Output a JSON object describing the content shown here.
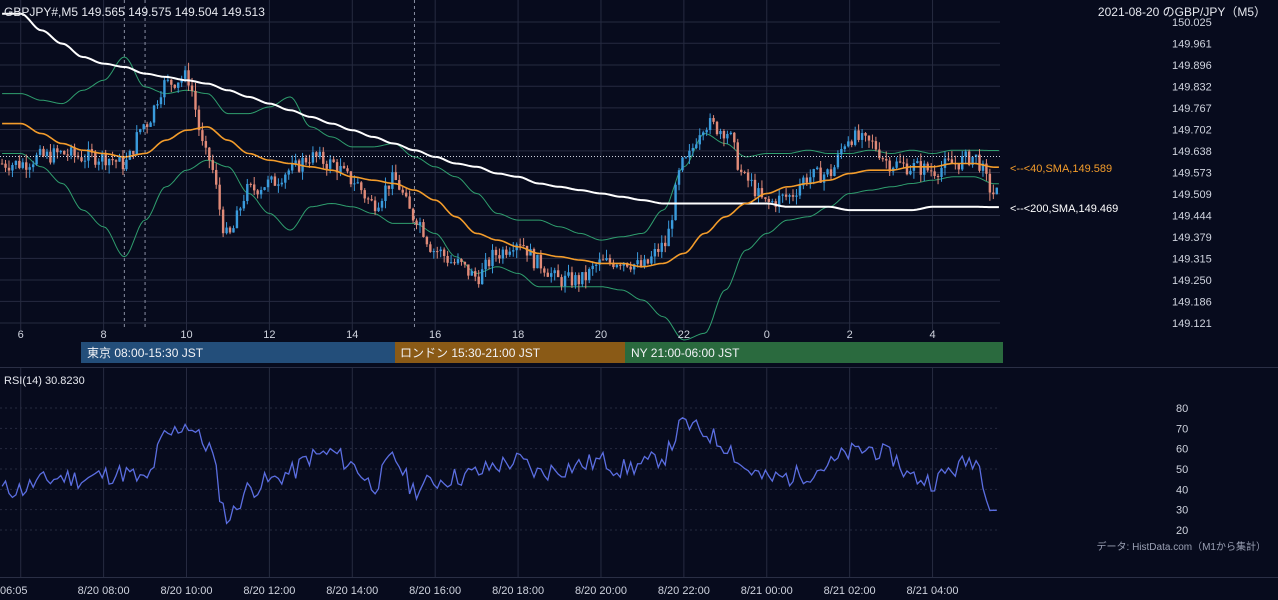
{
  "header": {
    "symbol_line": "GBPJPY#,M5 149.565 149.575 149.504 149.513",
    "title_right": "2021-08-20 のGBP/JPY（M5）"
  },
  "colors": {
    "background": "#070b1d",
    "grid": "#262b40",
    "bull": "#3a9bdc",
    "bear": "#e08a78",
    "sma40": "#f39c2b",
    "sma200": "#ffffff",
    "bollinger": "#2f9e6e",
    "rsi": "#5b6ee1",
    "tokyo": "#234e7a",
    "london": "#8a5a16",
    "ny": "#2a6a3e"
  },
  "main_panel": {
    "y_ticks": [
      "150.025",
      "149.961",
      "149.896",
      "149.832",
      "149.767",
      "149.702",
      "149.638",
      "149.573",
      "149.509",
      "149.444",
      "149.379",
      "149.315",
      "149.250",
      "149.186",
      "149.121"
    ],
    "x_ticks": [
      "6",
      "8",
      "10",
      "12",
      "14",
      "16",
      "18",
      "20",
      "22",
      "0",
      "2",
      "4"
    ],
    "sma40_label": "<--<40,SMA,149.589",
    "sma200_label": "<--<200,SMA,149.469",
    "sessions": [
      {
        "label": "東京 08:00-15:30 JST",
        "color": "#234e7a"
      },
      {
        "label": "ロンドン 15:30-21:00 JST",
        "color": "#8a5a16"
      },
      {
        "label": "NY 21:00-06:00 JST",
        "color": "#2a6a3e"
      }
    ]
  },
  "rsi_panel": {
    "label": "RSI(14) 30.8230",
    "y_ticks": [
      "80",
      "70",
      "60",
      "50",
      "40",
      "30",
      "20"
    ],
    "source_note": "データ: HistData.com（M1から集計）",
    "time_ticks": [
      "06:05",
      "8/20 08:00",
      "8/20 10:00",
      "8/20 12:00",
      "8/20 14:00",
      "8/20 16:00",
      "8/20 18:00",
      "8/20 20:00",
      "8/20 22:00",
      "8/21 00:00",
      "8/21 02:00",
      "8/21 04:00"
    ]
  },
  "chart_data": [
    {
      "type": "line",
      "title": "GBPJPY#,M5",
      "x_hours": [
        6,
        6.5,
        7,
        7.5,
        8,
        8.5,
        9,
        9.5,
        10,
        10.5,
        11,
        11.5,
        12,
        12.5,
        13,
        13.5,
        14,
        14.5,
        15,
        15.5,
        16,
        16.5,
        17,
        17.5,
        18,
        18.5,
        19,
        19.5,
        20,
        20.5,
        21,
        21.5,
        22,
        22.5,
        23,
        23.5,
        24,
        24.5,
        25,
        25.5,
        26,
        26.5,
        27,
        27.5,
        28,
        28.5,
        29,
        29.5
      ],
      "x_tick_labels": [
        "6",
        "8",
        "10",
        "12",
        "14",
        "16",
        "18",
        "20",
        "22",
        "0",
        "2",
        "4"
      ],
      "ylim": [
        149.121,
        150.025
      ],
      "series": [
        {
          "name": "Close",
          "values": [
            149.6,
            149.62,
            149.63,
            149.62,
            149.62,
            149.6,
            149.72,
            149.84,
            149.86,
            149.62,
            149.38,
            149.52,
            149.54,
            149.58,
            149.62,
            149.6,
            149.55,
            149.48,
            149.55,
            149.44,
            149.34,
            149.3,
            149.26,
            149.33,
            149.37,
            149.3,
            149.25,
            149.25,
            149.3,
            149.31,
            149.29,
            149.35,
            149.6,
            149.72,
            149.7,
            149.55,
            149.48,
            149.5,
            149.56,
            149.57,
            149.68,
            149.66,
            149.6,
            149.59,
            149.58,
            149.6,
            149.62,
            149.51
          ]
        },
        {
          "name": "SMA 40",
          "values": [
            149.72,
            149.69,
            149.66,
            149.64,
            149.63,
            149.62,
            149.63,
            149.67,
            149.7,
            149.71,
            149.67,
            149.63,
            149.61,
            149.6,
            149.59,
            149.58,
            149.56,
            149.55,
            149.54,
            149.52,
            149.49,
            149.44,
            149.39,
            149.37,
            149.35,
            149.33,
            149.32,
            149.31,
            149.3,
            149.3,
            149.29,
            149.3,
            149.33,
            149.39,
            149.44,
            149.48,
            149.51,
            149.53,
            149.54,
            149.55,
            149.57,
            149.58,
            149.58,
            149.59,
            149.59,
            149.6,
            149.6,
            149.589
          ]
        },
        {
          "name": "SMA 200",
          "values": [
            150.05,
            150.0,
            149.96,
            149.92,
            149.9,
            149.89,
            149.87,
            149.86,
            149.85,
            149.84,
            149.82,
            149.8,
            149.78,
            149.76,
            149.74,
            149.72,
            149.7,
            149.68,
            149.66,
            149.64,
            149.62,
            149.6,
            149.59,
            149.57,
            149.56,
            149.54,
            149.53,
            149.52,
            149.51,
            149.5,
            149.49,
            149.48,
            149.48,
            149.48,
            149.48,
            149.48,
            149.48,
            149.47,
            149.47,
            149.47,
            149.46,
            149.46,
            149.46,
            149.46,
            149.47,
            149.47,
            149.47,
            149.469
          ]
        }
      ]
    },
    {
      "type": "line",
      "title": "RSI(14) 30.8230",
      "ylim": [
        20,
        80
      ],
      "y_ticks": [
        80,
        70,
        60,
        50,
        40,
        30,
        20
      ],
      "x_hours": [
        6,
        6.5,
        7,
        7.5,
        8,
        8.5,
        9,
        9.5,
        10,
        10.5,
        11,
        11.5,
        12,
        12.5,
        13,
        13.5,
        14,
        14.5,
        15,
        15.5,
        16,
        16.5,
        17,
        17.5,
        18,
        18.5,
        19,
        19.5,
        20,
        20.5,
        21,
        21.5,
        22,
        22.5,
        23,
        23.5,
        24,
        24.5,
        25,
        25.5,
        26,
        26.5,
        27,
        27.5,
        28,
        28.5,
        29,
        29.5
      ],
      "series": [
        {
          "name": "RSI(14)",
          "values": [
            40,
            44,
            46,
            45,
            47,
            48,
            44,
            66,
            72,
            62,
            26,
            40,
            44,
            48,
            56,
            58,
            52,
            42,
            55,
            40,
            44,
            46,
            48,
            52,
            54,
            48,
            50,
            52,
            54,
            50,
            52,
            56,
            72,
            68,
            62,
            50,
            45,
            46,
            48,
            52,
            58,
            60,
            56,
            46,
            44,
            50,
            55,
            31
          ]
        }
      ]
    }
  ]
}
